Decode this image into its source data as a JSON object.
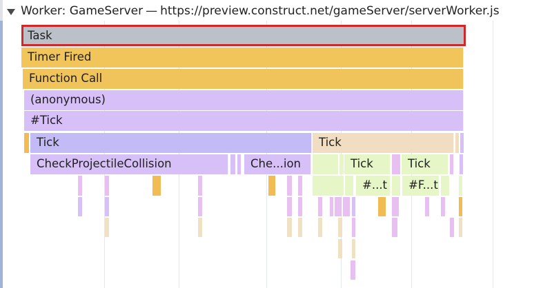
{
  "track": {
    "title": "Worker: GameServer",
    "separator": "—",
    "url": "https://preview.construct.net/gameServer/serverWorker.js"
  },
  "colors": {
    "task": "#bcc0c8",
    "timer": "#f2c55a",
    "function": "#f0c35b",
    "script": "#d7bff7",
    "tick": "#c3bbf5",
    "tick_alt": "#f1dec2",
    "green": "#e6f6c6",
    "orange": "#f2bc55",
    "pink": "#e7bff0",
    "tan": "#f0e1c4",
    "selection": "#d02828"
  },
  "labels": {
    "task": "Task",
    "timer_fired": "Timer Fired",
    "function_call": "Function Call",
    "anonymous": "(anonymous)",
    "hash_tick": "#Tick",
    "tick_1": "Tick",
    "tick_2": "Tick",
    "check_projectile": "CheckProjectileCollision",
    "che_ion": "Che...ion",
    "tick_3": "Tick",
    "tick_4": "Tick",
    "hash_t": "#...t",
    "hash_f": "#F...t"
  }
}
